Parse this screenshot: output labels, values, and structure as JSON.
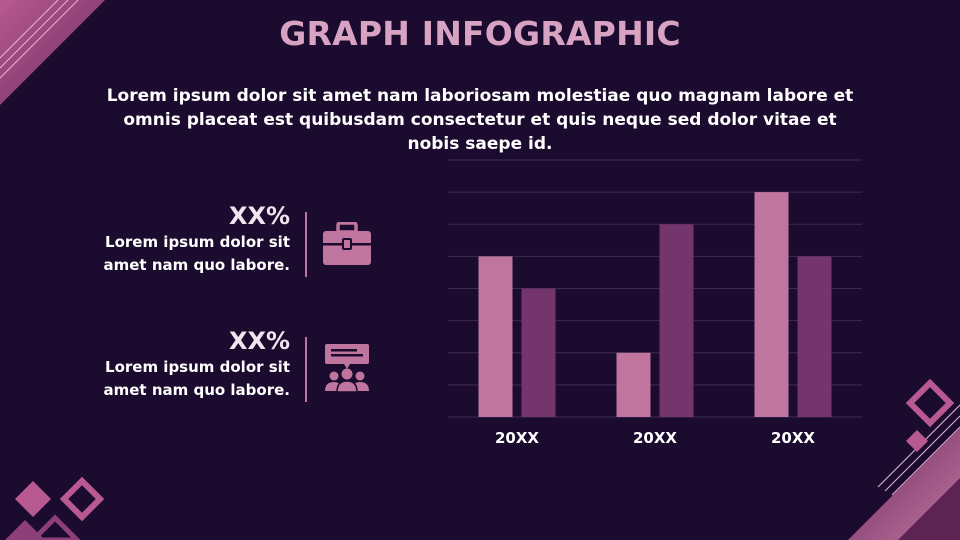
{
  "title": "GRAPH INFOGRAPHIC",
  "intro": "Lorem ipsum dolor sit amet nam laboriosam molestiae quo magnam labore et omnis placeat est quibusdam consectetur et quis neque sed dolor vitae et nobis saepe id.",
  "stats": [
    {
      "value": "XX%",
      "text_line1": "Lorem ipsum dolor sit",
      "text_line2": "amet nam quo labore.",
      "icon": "briefcase-icon"
    },
    {
      "value": "XX%",
      "text_line1": "Lorem ipsum dolor sit",
      "text_line2": "amet nam quo labore.",
      "icon": "team-presentation-icon"
    }
  ],
  "colors": {
    "background": "#1b0b2e",
    "title": "#d8a2c2",
    "series_light": "#c0759f",
    "series_dark": "#73356c",
    "gridline": "#3e2b55"
  },
  "chart_data": {
    "type": "bar",
    "categories": [
      "20XX",
      "20XX",
      "20XX"
    ],
    "series": [
      {
        "values": [
          5,
          2,
          7
        ]
      },
      {
        "values": [
          4,
          6,
          5
        ]
      }
    ],
    "ylim": [
      0,
      8
    ],
    "grid": true,
    "legend": "none",
    "title": "",
    "xlabel": "",
    "ylabel": ""
  }
}
